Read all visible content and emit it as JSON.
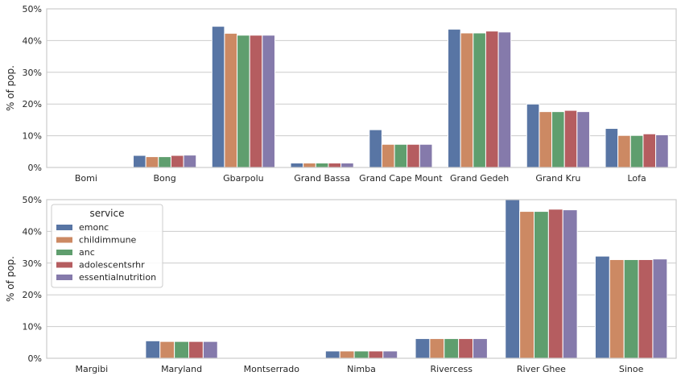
{
  "chart_data": [
    {
      "type": "bar",
      "ylabel": "% of pop.",
      "ylim": [
        0,
        50
      ],
      "yticks": [
        "0%",
        "10%",
        "20%",
        "30%",
        "40%",
        "50%"
      ],
      "grid": true,
      "categories": [
        "Bomi",
        "Bong",
        "Gbarpolu",
        "Grand Bassa",
        "Grand Cape Mount",
        "Grand Gedeh",
        "Grand Kru",
        "Lofa"
      ],
      "series": [
        {
          "name": "emonc",
          "color": "#5875a4",
          "values": [
            0.0,
            3.8,
            44.5,
            1.4,
            11.9,
            43.6,
            20.0,
            12.3
          ]
        },
        {
          "name": "childimmune",
          "color": "#cc8963",
          "values": [
            0.0,
            3.4,
            42.3,
            1.4,
            7.3,
            42.4,
            17.6,
            10.1
          ]
        },
        {
          "name": "anc",
          "color": "#5f9e6e",
          "values": [
            0.0,
            3.4,
            41.7,
            1.4,
            7.3,
            42.4,
            17.6,
            10.1
          ]
        },
        {
          "name": "adolescentsrhr",
          "color": "#b55d60",
          "values": [
            0.0,
            3.8,
            41.7,
            1.4,
            7.3,
            43.0,
            18.0,
            10.6
          ]
        },
        {
          "name": "essentialnutrition",
          "color": "#857aab",
          "values": [
            0.0,
            3.9,
            41.7,
            1.4,
            7.3,
            42.7,
            17.6,
            10.3
          ]
        }
      ]
    },
    {
      "type": "bar",
      "ylabel": "% of pop.",
      "ylim": [
        0,
        50
      ],
      "yticks": [
        "0%",
        "10%",
        "20%",
        "30%",
        "40%",
        "50%"
      ],
      "grid": true,
      "legend": {
        "title": "service",
        "placement": "top-left"
      },
      "categories": [
        "Margibi",
        "Maryland",
        "Montserrado",
        "Nimba",
        "Rivercess",
        "River Ghee",
        "Sinoe"
      ],
      "series": [
        {
          "name": "emonc",
          "color": "#5875a4",
          "values": [
            0.0,
            5.5,
            0.0,
            2.3,
            6.2,
            50.0,
            32.2
          ]
        },
        {
          "name": "childimmune",
          "color": "#cc8963",
          "values": [
            0.0,
            5.3,
            0.0,
            2.3,
            6.2,
            46.3,
            31.1
          ]
        },
        {
          "name": "anc",
          "color": "#5f9e6e",
          "values": [
            0.0,
            5.3,
            0.0,
            2.3,
            6.2,
            46.3,
            31.1
          ]
        },
        {
          "name": "adolescentsrhr",
          "color": "#b55d60",
          "values": [
            0.0,
            5.3,
            0.0,
            2.3,
            6.2,
            47.0,
            31.1
          ]
        },
        {
          "name": "essentialnutrition",
          "color": "#857aab",
          "values": [
            0.0,
            5.3,
            0.0,
            2.3,
            6.2,
            46.8,
            31.3
          ]
        }
      ]
    }
  ]
}
